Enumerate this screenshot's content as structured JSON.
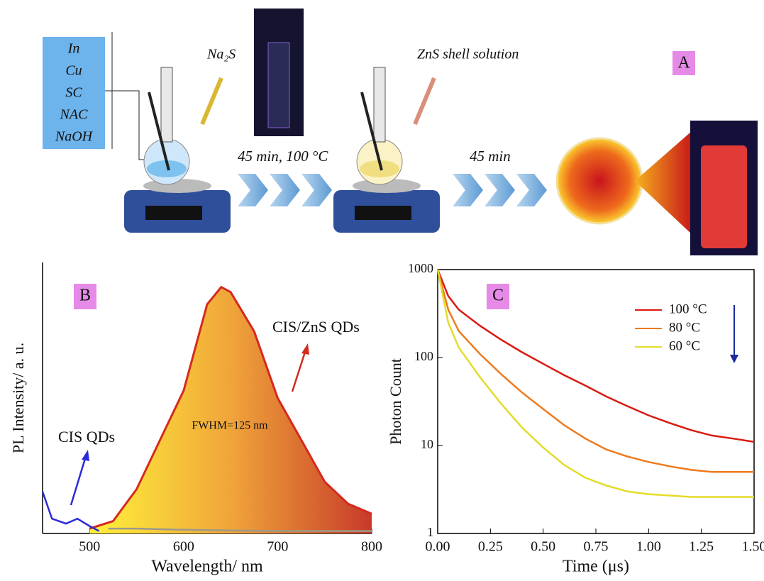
{
  "scheme": {
    "panel": "A",
    "reagents": [
      "In",
      "Cu",
      "SC",
      "NAC",
      "NaOH"
    ],
    "step1_reagent": "Na₂S",
    "step1_condition": "45 min, 100 °C",
    "step2_reagent": "ZnS shell solution",
    "step2_condition": "45 min"
  },
  "chart_data": [
    {
      "type": "line",
      "panel": "B",
      "x_label": "Wavelength/ nm",
      "y_label": "PL Intensity/ a. u.",
      "xlim": [
        450,
        800
      ],
      "xticks": [
        500,
        600,
        700,
        800
      ],
      "ylim": [
        0,
        1.1
      ],
      "annotations": [
        "CIS QDs",
        "CIS/ZnS QDs",
        "FWHM=125 nm"
      ],
      "series": [
        {
          "name": "CIS/ZnS QDs",
          "color": "#d42a1e",
          "fill": true,
          "x": [
            500,
            525,
            550,
            575,
            600,
            625,
            640,
            650,
            675,
            700,
            725,
            750,
            775,
            800
          ],
          "values": [
            0.02,
            0.05,
            0.18,
            0.38,
            0.58,
            0.93,
            1.0,
            0.98,
            0.82,
            0.55,
            0.38,
            0.21,
            0.12,
            0.08
          ]
        },
        {
          "name": "CIS QDs",
          "color": "#2b2bd9",
          "x": [
            450,
            460,
            475,
            487,
            500,
            510
          ],
          "values": [
            0.17,
            0.06,
            0.04,
            0.06,
            0.03,
            0.01
          ]
        },
        {
          "color": "#9a9a8a",
          "x": [
            520,
            550,
            600,
            650,
            700,
            750,
            800
          ],
          "values": [
            0.02,
            0.02,
            0.015,
            0.012,
            0.01,
            0.01,
            0.01
          ]
        }
      ]
    },
    {
      "type": "line",
      "panel": "C",
      "x_label": "Time (μs)",
      "y_label": "Photon Count",
      "log_y": true,
      "legend": "top-right",
      "xlim": [
        0,
        1.5
      ],
      "ylim": [
        1,
        1000
      ],
      "xticks": [
        {
          "value": 0,
          "label": "0.00"
        },
        {
          "value": 0.25,
          "label": "0.25"
        },
        {
          "value": 0.5,
          "label": "0.50"
        },
        {
          "value": 0.75,
          "label": "0.75"
        },
        {
          "value": 1,
          "label": "1.00"
        },
        {
          "value": 1.25,
          "label": "1.25"
        },
        {
          "value": 1.5,
          "label": "1.50"
        }
      ],
      "yticks": [
        1,
        10,
        100,
        1000
      ],
      "series": [
        {
          "name": "100 °C",
          "color": "#d91a10",
          "x": [
            0,
            0.05,
            0.1,
            0.2,
            0.3,
            0.4,
            0.5,
            0.6,
            0.7,
            0.8,
            0.9,
            1.0,
            1.1,
            1.2,
            1.3,
            1.4,
            1.5
          ],
          "values": [
            1000,
            500,
            350,
            230,
            160,
            115,
            85,
            63,
            48,
            36,
            28,
            22,
            18,
            15,
            13,
            12,
            11
          ]
        },
        {
          "name": "80 °C",
          "color": "#ee7a1e",
          "x": [
            0,
            0.05,
            0.1,
            0.2,
            0.3,
            0.4,
            0.5,
            0.6,
            0.7,
            0.8,
            0.9,
            1.0,
            1.1,
            1.2,
            1.3,
            1.4,
            1.5
          ],
          "values": [
            1000,
            350,
            200,
            110,
            65,
            40,
            26,
            17,
            12,
            9,
            7.5,
            6.5,
            5.8,
            5.3,
            5,
            5,
            5
          ]
        },
        {
          "name": "60 °C",
          "color": "#e3dc2a",
          "x": [
            0,
            0.05,
            0.1,
            0.2,
            0.3,
            0.4,
            0.5,
            0.6,
            0.7,
            0.8,
            0.9,
            1.0,
            1.1,
            1.2,
            1.3,
            1.4,
            1.5
          ],
          "values": [
            1000,
            250,
            130,
            60,
            30,
            16,
            9.5,
            6,
            4.3,
            3.5,
            3,
            2.8,
            2.7,
            2.6,
            2.6,
            2.6,
            2.6
          ]
        }
      ]
    }
  ]
}
